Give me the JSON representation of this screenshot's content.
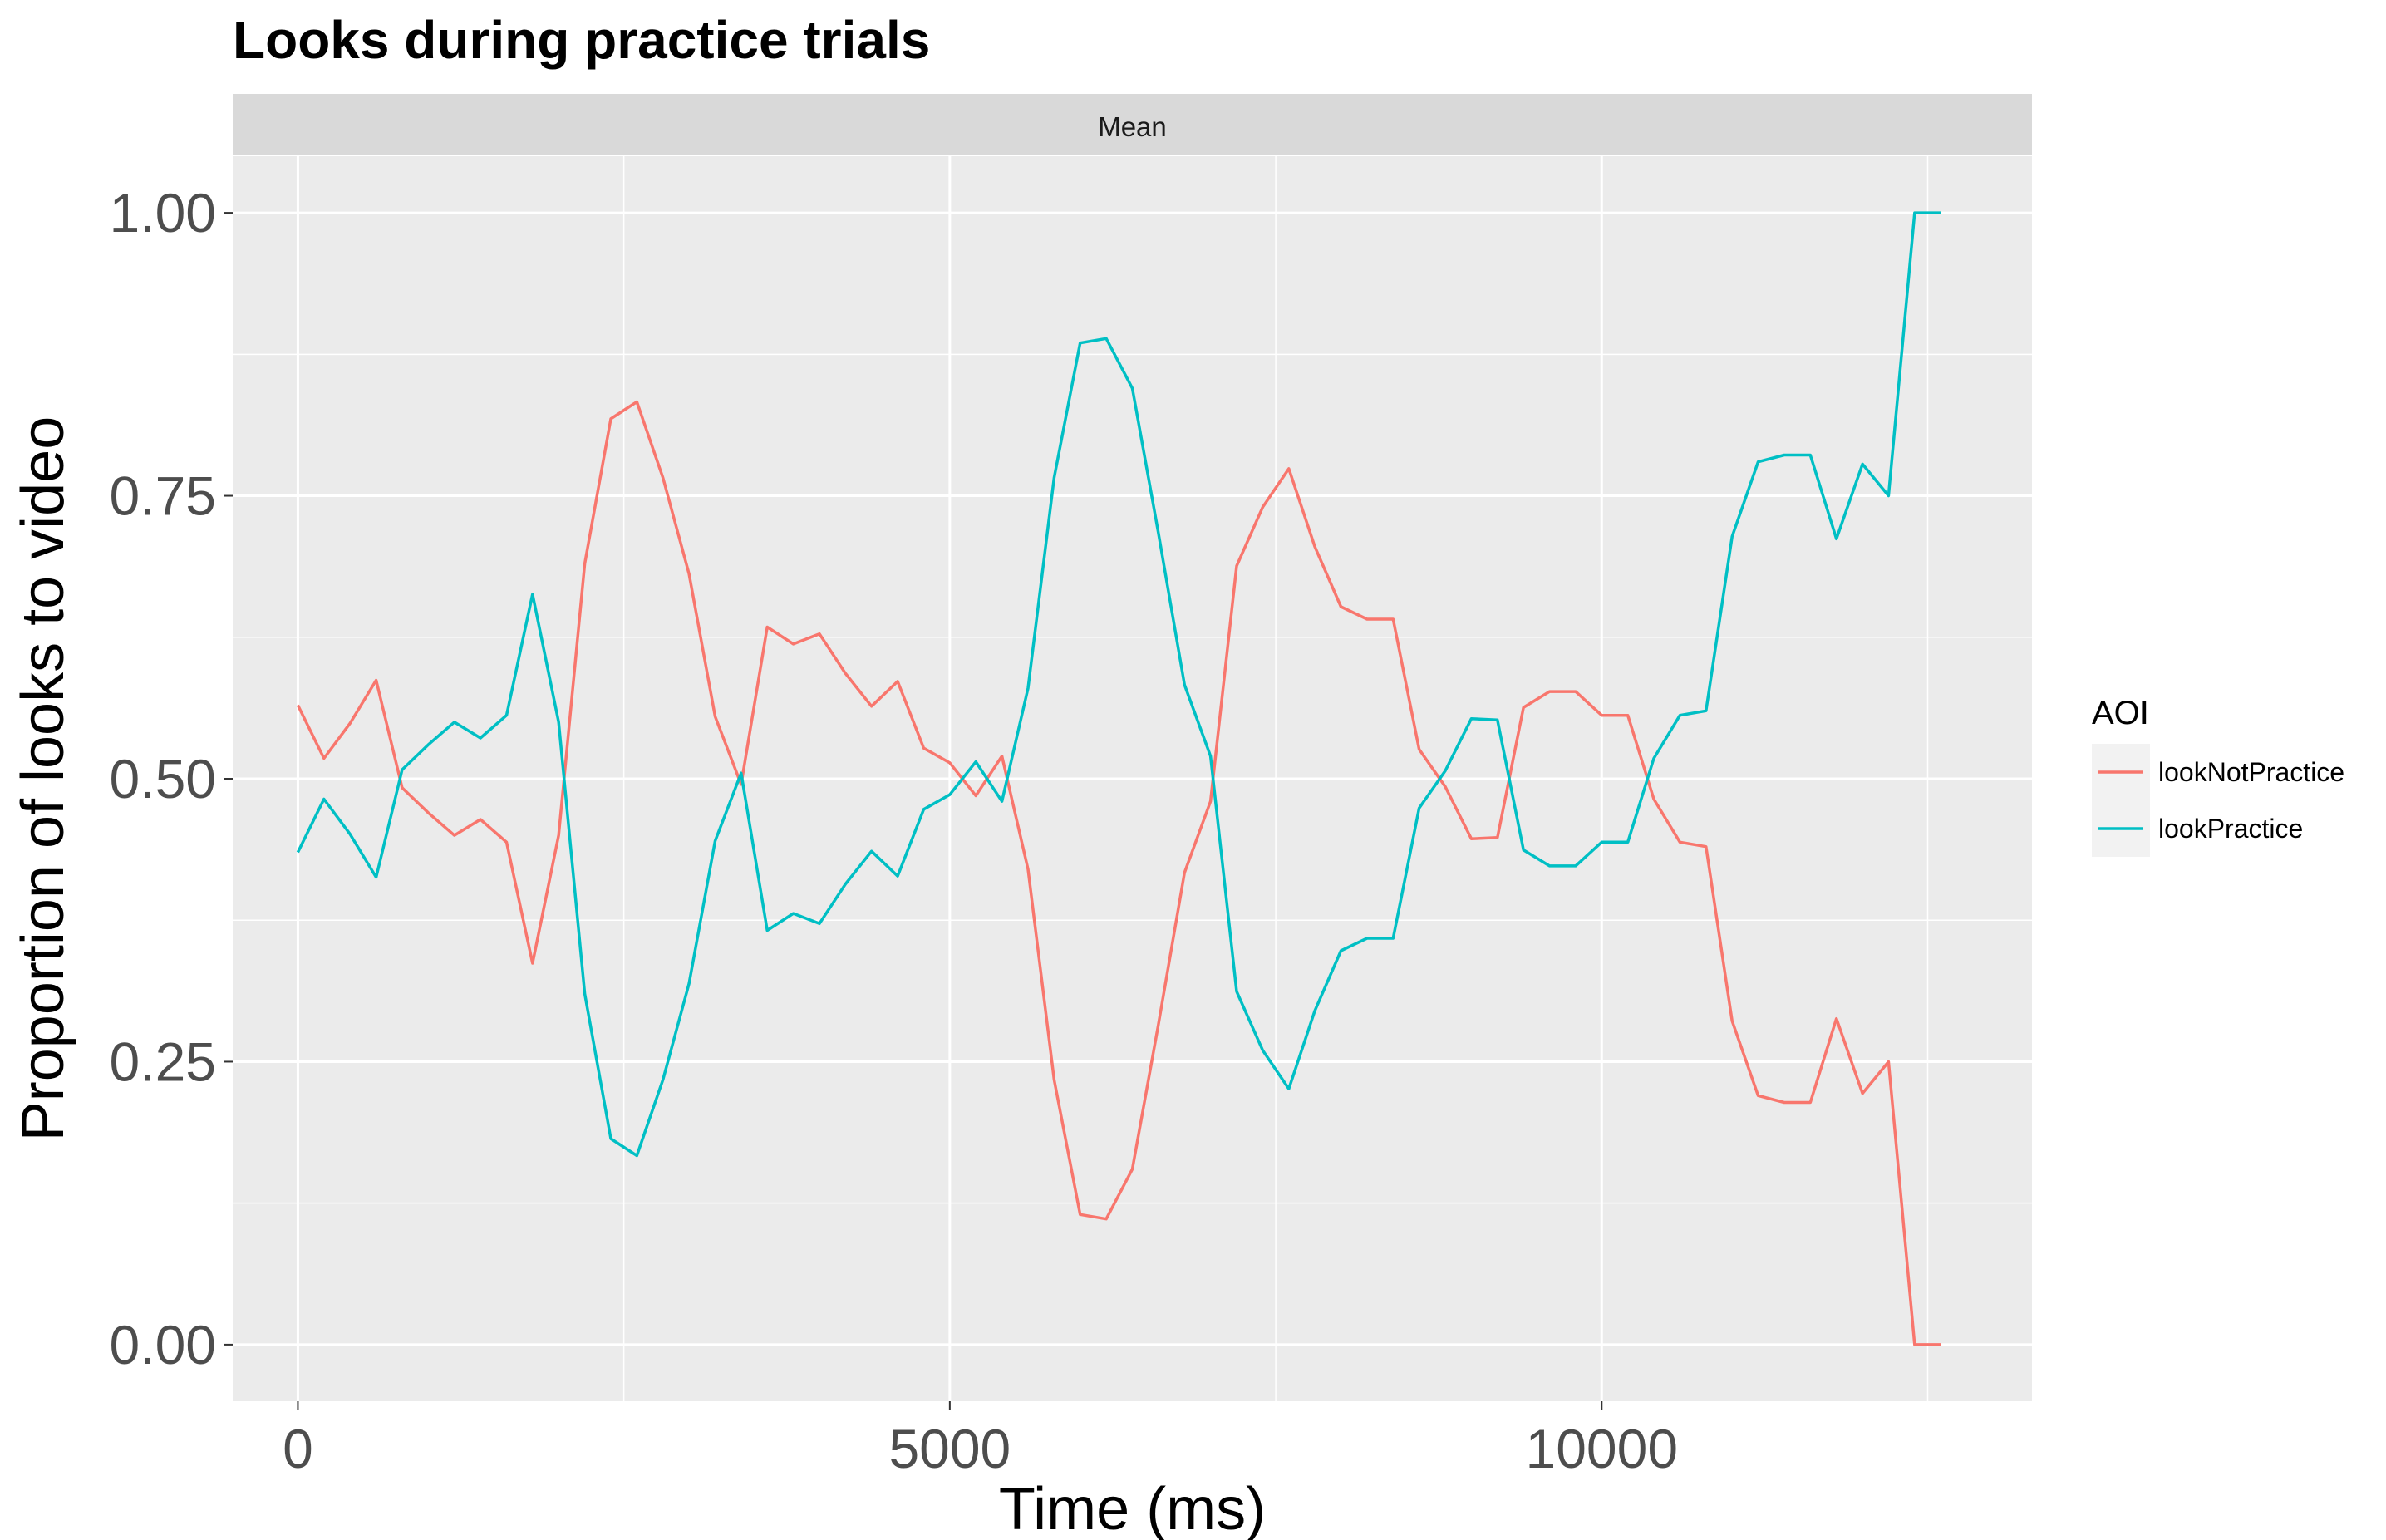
{
  "chart_data": {
    "type": "line",
    "title": "Looks during practice trials",
    "facet_label": "Mean",
    "xlabel": "Time (ms)",
    "ylabel": "Proportion of looks to video",
    "xlim": [
      -500,
      13300
    ],
    "ylim": [
      -0.05,
      1.05
    ],
    "x_ticks": [
      0,
      5000,
      10000
    ],
    "x_tick_labels": [
      "0",
      "5000",
      "10000"
    ],
    "y_ticks": [
      0,
      0.25,
      0.5,
      0.75,
      1.0
    ],
    "y_tick_labels": [
      "0.00",
      "0.25",
      "0.50",
      "0.75",
      "1.00"
    ],
    "grid": true,
    "legend": {
      "title": "AOI",
      "position": "right",
      "entries": [
        "lookNotPractice",
        "lookPractice"
      ]
    },
    "x": [
      0,
      200,
      400,
      600,
      800,
      1000,
      1200,
      1400,
      1600,
      1800,
      2000,
      2200,
      2400,
      2600,
      2800,
      3000,
      3200,
      3400,
      3600,
      3800,
      4000,
      4200,
      4400,
      4600,
      4800,
      5000,
      5200,
      5400,
      5600,
      5800,
      6000,
      6200,
      6400,
      6600,
      6800,
      7000,
      7200,
      7400,
      7600,
      7800,
      8000,
      8200,
      8400,
      8600,
      8800,
      9000,
      9200,
      9400,
      9600,
      9800,
      10000,
      10200,
      10400,
      10600,
      10800,
      11000,
      11200,
      11400,
      11600,
      11800,
      12000,
      12200,
      12400,
      12600
    ],
    "series": [
      {
        "name": "lookNotPractice",
        "color": "#F8766D",
        "values": [
          0.565,
          0.518,
          0.549,
          0.587,
          0.492,
          0.47,
          0.45,
          0.464,
          0.444,
          0.337,
          0.45,
          0.69,
          0.818,
          0.833,
          0.766,
          0.681,
          0.555,
          0.495,
          0.634,
          0.619,
          0.628,
          0.593,
          0.564,
          0.586,
          0.527,
          0.514,
          0.485,
          0.52,
          0.42,
          0.234,
          0.115,
          0.111,
          0.155,
          0.283,
          0.417,
          0.48,
          0.688,
          0.74,
          0.774,
          0.705,
          0.652,
          0.641,
          0.641,
          0.526,
          0.493,
          0.447,
          0.448,
          0.563,
          0.577,
          0.577,
          0.556,
          0.556,
          0.482,
          0.444,
          0.44,
          0.286,
          0.22,
          0.214,
          0.214,
          0.288,
          0.222,
          0.25,
          0.0,
          0.0
        ]
      },
      {
        "name": "lookPractice",
        "color": "#00BFC4",
        "values": [
          0.435,
          0.482,
          0.451,
          0.413,
          0.508,
          0.53,
          0.55,
          0.536,
          0.556,
          0.663,
          0.55,
          0.31,
          0.182,
          0.167,
          0.234,
          0.319,
          0.445,
          0.505,
          0.366,
          0.381,
          0.372,
          0.407,
          0.436,
          0.414,
          0.473,
          0.486,
          0.515,
          0.48,
          0.58,
          0.766,
          0.885,
          0.889,
          0.845,
          0.717,
          0.583,
          0.52,
          0.312,
          0.26,
          0.226,
          0.295,
          0.348,
          0.359,
          0.359,
          0.474,
          0.507,
          0.553,
          0.552,
          0.437,
          0.423,
          0.423,
          0.444,
          0.444,
          0.518,
          0.556,
          0.56,
          0.714,
          0.78,
          0.786,
          0.786,
          0.712,
          0.778,
          0.75,
          1.0,
          1.0
        ]
      }
    ]
  }
}
